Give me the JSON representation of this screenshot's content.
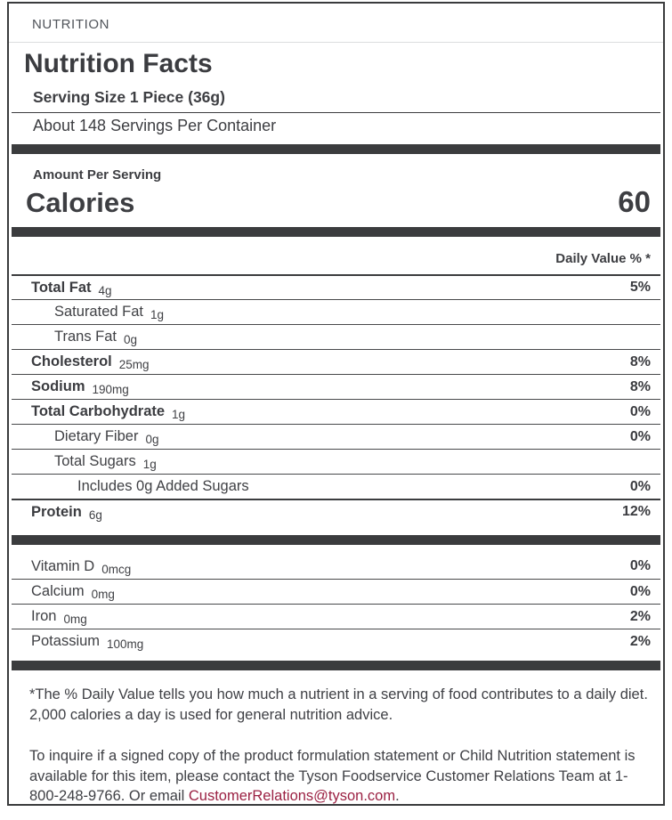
{
  "header": {
    "tab_label": "NUTRITION"
  },
  "title": "Nutrition Facts",
  "serving": {
    "size": "Serving Size 1 Piece (36g)",
    "per_container": "About 148 Servings Per Container"
  },
  "calories": {
    "section_label": "Amount Per Serving",
    "label": "Calories",
    "value": "60"
  },
  "daily_value_header": "Daily Value % *",
  "nutrients": [
    {
      "name": "Total Fat",
      "amount": "4g",
      "dv": "5%",
      "bold": true,
      "indent": 0,
      "thick_top": true
    },
    {
      "name": "Saturated Fat",
      "amount": "1g",
      "dv": "",
      "bold": false,
      "indent": 1,
      "thick_top": false
    },
    {
      "name": "Trans Fat",
      "amount": "0g",
      "dv": "",
      "bold": false,
      "indent": 1,
      "thick_top": false
    },
    {
      "name": "Cholesterol",
      "amount": "25mg",
      "dv": "8%",
      "bold": true,
      "indent": 0,
      "thick_top": false
    },
    {
      "name": "Sodium",
      "amount": "190mg",
      "dv": "8%",
      "bold": true,
      "indent": 0,
      "thick_top": false
    },
    {
      "name": "Total Carbohydrate",
      "amount": "1g",
      "dv": "0%",
      "bold": true,
      "indent": 0,
      "thick_top": false
    },
    {
      "name": "Dietary Fiber",
      "amount": "0g",
      "dv": "0%",
      "bold": false,
      "indent": 1,
      "thick_top": false
    },
    {
      "name": "Total Sugars",
      "amount": "1g",
      "dv": "",
      "bold": false,
      "indent": 1,
      "thick_top": false
    },
    {
      "name": "Includes 0g Added Sugars",
      "amount": "",
      "dv": "0%",
      "bold": false,
      "indent": 2,
      "thick_top": false
    },
    {
      "name": "Protein",
      "amount": "6g",
      "dv": "12%",
      "bold": true,
      "indent": 0,
      "thick_top": true
    }
  ],
  "vitamins": [
    {
      "name": "Vitamin D",
      "amount": "0mcg",
      "dv": "0%"
    },
    {
      "name": "Calcium",
      "amount": "0mg",
      "dv": "0%"
    },
    {
      "name": "Iron",
      "amount": "0mg",
      "dv": "2%"
    },
    {
      "name": "Potassium",
      "amount": "100mg",
      "dv": "2%"
    }
  ],
  "footnotes": {
    "daily_value_note": "*The % Daily Value tells you how much a nutrient in a serving of food contributes to a daily diet. 2,000 calories a day is used for general nutrition advice.",
    "contact_before_link": "To inquire if a signed copy of the product formulation statement or Child Nutrition statement is available for this item, please contact the Tyson Foodservice Customer Relations Team at 1-800-248-9766. Or email ",
    "contact_link": "CustomerRelations@tyson.com",
    "contact_after_link": "."
  },
  "colors": {
    "text": "#3d3e42",
    "bar": "#3b3c3e",
    "link": "#9b2143",
    "light_divider": "#dcdddf"
  }
}
